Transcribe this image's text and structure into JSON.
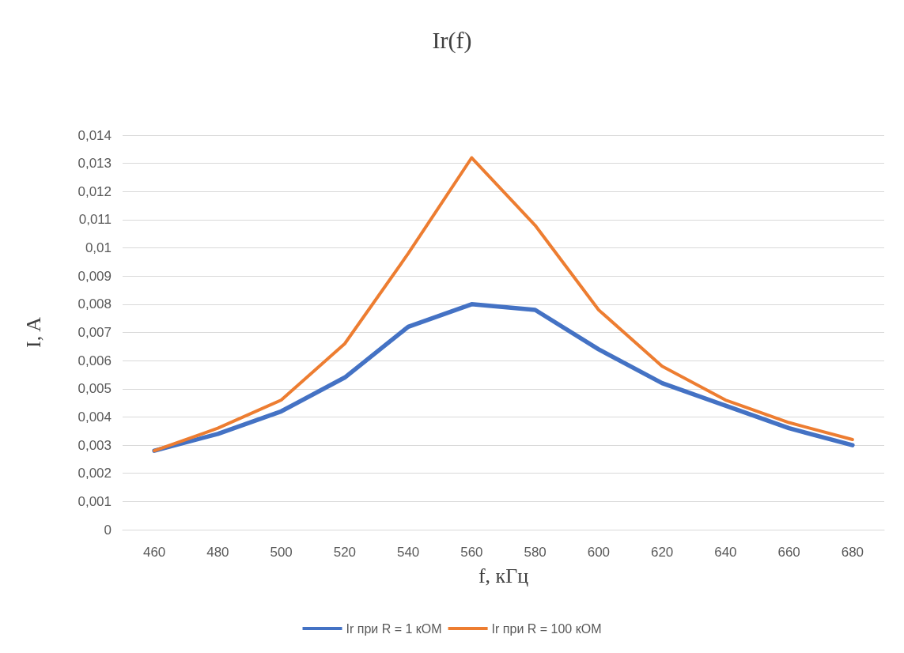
{
  "chart_data": {
    "type": "line",
    "title": "Ir(f)",
    "xlabel": "f, кГц",
    "ylabel": "I, A",
    "categories": [
      "460",
      "480",
      "500",
      "520",
      "540",
      "560",
      "580",
      "600",
      "620",
      "640",
      "660",
      "680"
    ],
    "series": [
      {
        "name": "Ir при R = 1 кОМ",
        "color": "#4472c4",
        "values": [
          0.0028,
          0.0034,
          0.0042,
          0.0054,
          0.0072,
          0.008,
          0.0078,
          0.0064,
          0.0052,
          0.0044,
          0.0036,
          0.003
        ]
      },
      {
        "name": "Ir при R = 100 кОМ",
        "color": "#ed7d31",
        "values": [
          0.0028,
          0.0036,
          0.0046,
          0.0066,
          0.0098,
          0.0132,
          0.0108,
          0.0078,
          0.0058,
          0.0046,
          0.0038,
          0.0032
        ]
      }
    ],
    "ylim": [
      0,
      0.014
    ],
    "yticks": [
      0,
      {
        "value": 0.001,
        "label": "0,001"
      },
      {
        "value": 0.002,
        "label": "0,002"
      },
      {
        "value": 0.003,
        "label": "0,003"
      },
      {
        "value": 0.004,
        "label": "0,004"
      },
      {
        "value": 0.005,
        "label": "0,005"
      },
      {
        "value": 0.006,
        "label": "0,006"
      },
      {
        "value": 0.007,
        "label": "0,007"
      },
      {
        "value": 0.008,
        "label": "0,008"
      },
      {
        "value": 0.009,
        "label": "0,009"
      },
      {
        "value": 0.01,
        "label": "0,01"
      },
      {
        "value": 0.011,
        "label": "0,011"
      },
      {
        "value": 0.012,
        "label": "0,012"
      },
      {
        "value": 0.013,
        "label": "0,013"
      },
      {
        "value": 0.014,
        "label": "0,014"
      }
    ],
    "grid": "y",
    "legend": "bottom",
    "marker": "none",
    "line_style": "solid"
  }
}
